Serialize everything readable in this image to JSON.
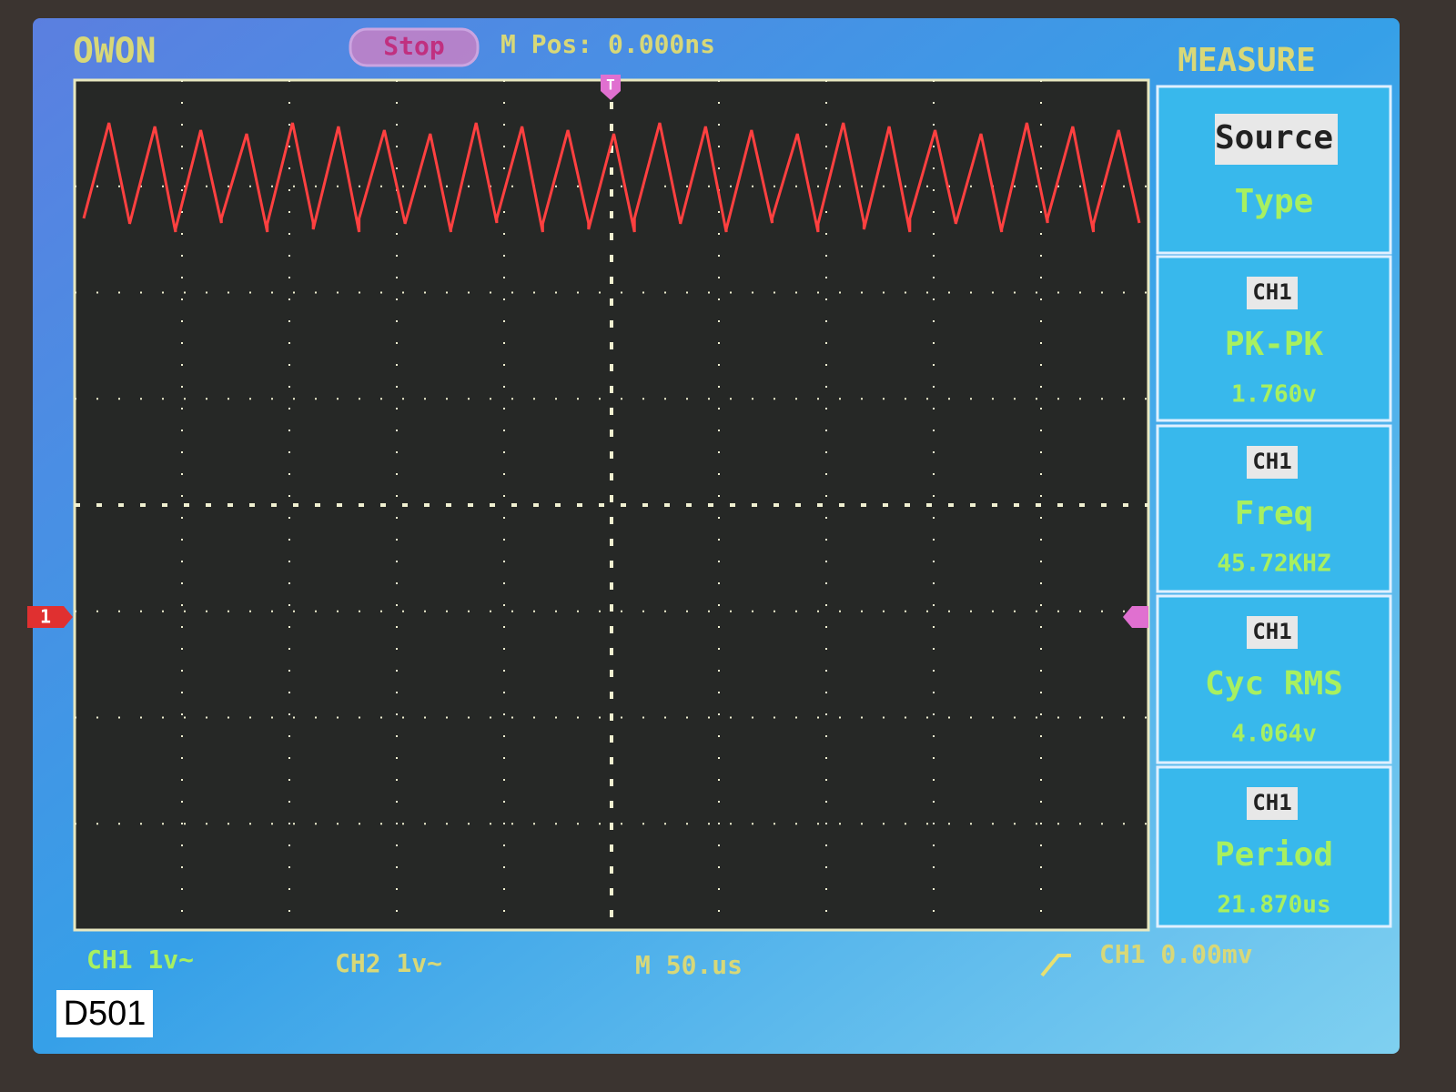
{
  "header": {
    "brand": "OWON",
    "state": "Stop",
    "position": "M Pos: 0.000ns",
    "menu": "MEASURE"
  },
  "markers": {
    "trigger": "T",
    "channel": "1"
  },
  "menu": [
    {
      "label": "Source",
      "sub": "Type"
    },
    {
      "channel": "CH1",
      "type": "PK-PK",
      "value": "1.760v"
    },
    {
      "channel": "CH1",
      "type": "Freq",
      "value": "45.72KHZ"
    },
    {
      "channel": "CH1",
      "type": "Cyc RMS",
      "value": "4.064v"
    },
    {
      "channel": "CH1",
      "type": "Period",
      "value": "21.870us"
    }
  ],
  "status": {
    "ch1": "CH1 1v~",
    "ch2": "CH2 1v~",
    "time": "M 50.us",
    "trigger": "CH1 0.00mv"
  },
  "tag": "D501"
}
